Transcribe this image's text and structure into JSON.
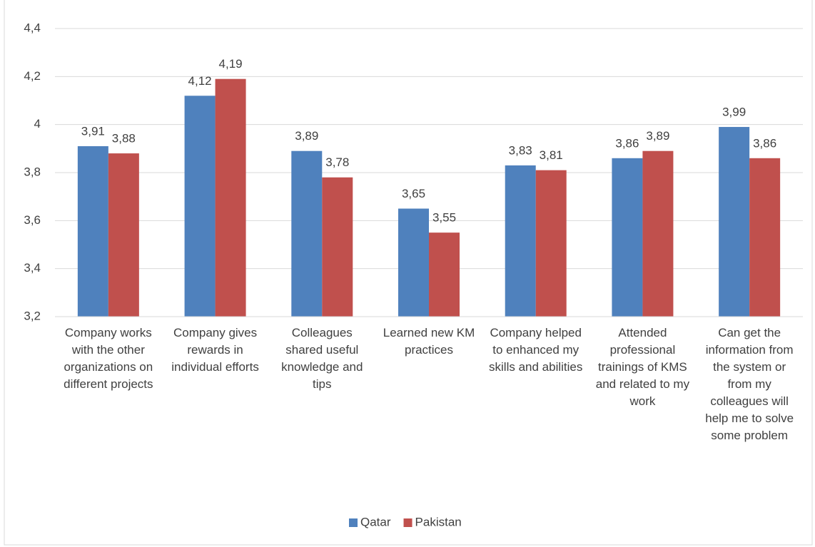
{
  "chart_data": {
    "type": "bar",
    "categories": [
      "Company works with the other organizations on different projects",
      "Company gives rewards in individual efforts",
      "Colleagues shared useful knowledge and tips",
      "Learned new KM practices",
      "Company helped to enhanced my skills and abilities",
      "Attended professional trainings of KMS and related to my work",
      "Can get the information from the system or from my colleagues will help me to solve some problem"
    ],
    "series": [
      {
        "name": "Qatar",
        "color": "#4f81bd",
        "values": [
          3.91,
          4.12,
          3.89,
          3.65,
          3.83,
          3.86,
          3.99
        ],
        "value_labels": [
          "3,91",
          "4,12",
          "3,89",
          "3,65",
          "3,83",
          "3,86",
          "3,99"
        ]
      },
      {
        "name": "Pakistan",
        "color": "#c0504d",
        "values": [
          3.88,
          4.19,
          3.78,
          3.55,
          3.81,
          3.89,
          3.86
        ],
        "value_labels": [
          "3,88",
          "4,19",
          "3,78",
          "3,55",
          "3,81",
          "3,89",
          "3,86"
        ]
      }
    ],
    "ylim": [
      3.2,
      4.4
    ],
    "yticks": [
      {
        "value": 3.2,
        "label": "3,2"
      },
      {
        "value": 3.4,
        "label": "3,4"
      },
      {
        "value": 3.6,
        "label": "3,6"
      },
      {
        "value": 3.8,
        "label": "3,8"
      },
      4,
      {
        "value": 4.2,
        "label": "4,2"
      },
      {
        "value": 4.4,
        "label": "4,4"
      }
    ],
    "grid": true,
    "legend": "bottom"
  }
}
